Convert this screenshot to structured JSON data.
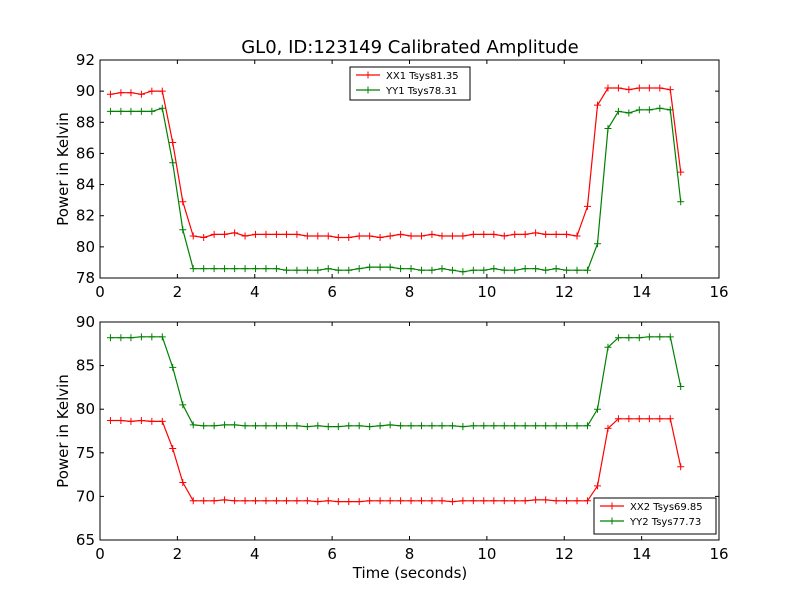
{
  "figure": {
    "title": "GL0, ID:123149 Calibrated Amplitude",
    "xlabel": "Time (seconds)"
  },
  "colors": {
    "series_a": "#ff0000",
    "series_b": "#008000",
    "axes": "#000000",
    "background": "#ffffff"
  },
  "chart_data": [
    {
      "type": "line",
      "title": "GL0, ID:123149 Calibrated Amplitude",
      "xlabel": "",
      "ylabel": "Power in Kelvin",
      "xlim": [
        0,
        16
      ],
      "ylim": [
        78,
        92
      ],
      "xticks": [
        "0",
        "2",
        "4",
        "6",
        "8",
        "10",
        "12",
        "14",
        "16"
      ],
      "yticks": [
        "78",
        "80",
        "82",
        "84",
        "86",
        "88",
        "90",
        "92"
      ],
      "legend_position": "top-center",
      "marker": "+",
      "x": [
        0.27,
        0.54,
        0.8,
        1.07,
        1.34,
        1.61,
        1.88,
        2.14,
        2.41,
        2.68,
        2.95,
        3.22,
        3.48,
        3.75,
        4.02,
        4.29,
        4.56,
        4.82,
        5.09,
        5.36,
        5.63,
        5.9,
        6.16,
        6.43,
        6.7,
        6.97,
        7.24,
        7.5,
        7.77,
        8.04,
        8.31,
        8.58,
        8.84,
        9.11,
        9.38,
        9.65,
        9.92,
        10.18,
        10.45,
        10.72,
        10.99,
        11.26,
        11.52,
        11.79,
        12.06,
        12.33,
        12.6,
        12.86,
        13.13,
        13.4,
        13.67,
        13.94,
        14.2,
        14.47,
        14.74,
        15.01
      ],
      "series": [
        {
          "name": "XX1 Tsys81.35",
          "values": [
            89.8,
            89.9,
            89.9,
            89.8,
            90.0,
            90.0,
            86.7,
            82.9,
            80.7,
            80.6,
            80.8,
            80.8,
            80.9,
            80.7,
            80.8,
            80.8,
            80.8,
            80.8,
            80.8,
            80.7,
            80.7,
            80.7,
            80.6,
            80.6,
            80.7,
            80.7,
            80.6,
            80.7,
            80.8,
            80.7,
            80.7,
            80.8,
            80.7,
            80.7,
            80.7,
            80.8,
            80.8,
            80.8,
            80.7,
            80.8,
            80.8,
            80.9,
            80.8,
            80.8,
            80.8,
            80.7,
            82.6,
            89.1,
            90.2,
            90.2,
            90.1,
            90.2,
            90.2,
            90.2,
            90.1,
            84.8
          ]
        },
        {
          "name": "YY1 Tsys78.31",
          "values": [
            88.7,
            88.7,
            88.7,
            88.7,
            88.7,
            88.9,
            85.4,
            81.1,
            78.6,
            78.6,
            78.6,
            78.6,
            78.6,
            78.6,
            78.6,
            78.6,
            78.6,
            78.5,
            78.5,
            78.5,
            78.5,
            78.6,
            78.5,
            78.5,
            78.6,
            78.7,
            78.7,
            78.7,
            78.6,
            78.6,
            78.5,
            78.5,
            78.6,
            78.5,
            78.4,
            78.5,
            78.5,
            78.6,
            78.5,
            78.5,
            78.6,
            78.6,
            78.5,
            78.6,
            78.5,
            78.5,
            78.5,
            80.2,
            87.6,
            88.7,
            88.6,
            88.8,
            88.8,
            88.9,
            88.8,
            82.9
          ]
        }
      ]
    },
    {
      "type": "line",
      "title": "",
      "xlabel": "Time (seconds)",
      "ylabel": "Power in Kelvin",
      "xlim": [
        0,
        16
      ],
      "ylim": [
        65,
        90
      ],
      "xticks": [
        "0",
        "2",
        "4",
        "6",
        "8",
        "10",
        "12",
        "14",
        "16"
      ],
      "yticks": [
        "65",
        "70",
        "75",
        "80",
        "85",
        "90"
      ],
      "legend_position": "bottom-right",
      "marker": "+",
      "x": [
        0.27,
        0.54,
        0.8,
        1.07,
        1.34,
        1.61,
        1.88,
        2.14,
        2.41,
        2.68,
        2.95,
        3.22,
        3.48,
        3.75,
        4.02,
        4.29,
        4.56,
        4.82,
        5.09,
        5.36,
        5.63,
        5.9,
        6.16,
        6.43,
        6.7,
        6.97,
        7.24,
        7.5,
        7.77,
        8.04,
        8.31,
        8.58,
        8.84,
        9.11,
        9.38,
        9.65,
        9.92,
        10.18,
        10.45,
        10.72,
        10.99,
        11.26,
        11.52,
        11.79,
        12.06,
        12.33,
        12.6,
        12.86,
        13.13,
        13.4,
        13.67,
        13.94,
        14.2,
        14.47,
        14.74,
        15.01
      ],
      "series": [
        {
          "name": "XX2 Tsys69.85",
          "values": [
            78.7,
            78.7,
            78.6,
            78.7,
            78.6,
            78.6,
            75.5,
            71.6,
            69.5,
            69.5,
            69.5,
            69.6,
            69.5,
            69.5,
            69.5,
            69.5,
            69.5,
            69.5,
            69.5,
            69.5,
            69.4,
            69.5,
            69.4,
            69.4,
            69.4,
            69.5,
            69.5,
            69.5,
            69.5,
            69.5,
            69.5,
            69.5,
            69.5,
            69.4,
            69.5,
            69.5,
            69.5,
            69.5,
            69.5,
            69.5,
            69.5,
            69.6,
            69.6,
            69.5,
            69.5,
            69.5,
            69.5,
            71.2,
            77.8,
            78.9,
            78.9,
            78.9,
            78.9,
            78.9,
            78.9,
            73.4
          ]
        },
        {
          "name": "YY2 Tsys77.73",
          "values": [
            88.2,
            88.2,
            88.2,
            88.3,
            88.3,
            88.3,
            84.8,
            80.5,
            78.2,
            78.1,
            78.1,
            78.2,
            78.2,
            78.1,
            78.1,
            78.1,
            78.1,
            78.1,
            78.1,
            78.0,
            78.1,
            78.0,
            78.0,
            78.1,
            78.1,
            78.0,
            78.1,
            78.2,
            78.1,
            78.1,
            78.1,
            78.1,
            78.1,
            78.1,
            78.0,
            78.1,
            78.1,
            78.1,
            78.1,
            78.1,
            78.1,
            78.1,
            78.1,
            78.1,
            78.1,
            78.1,
            78.1,
            80.0,
            87.1,
            88.2,
            88.2,
            88.2,
            88.3,
            88.3,
            88.3,
            82.6
          ]
        }
      ]
    }
  ]
}
